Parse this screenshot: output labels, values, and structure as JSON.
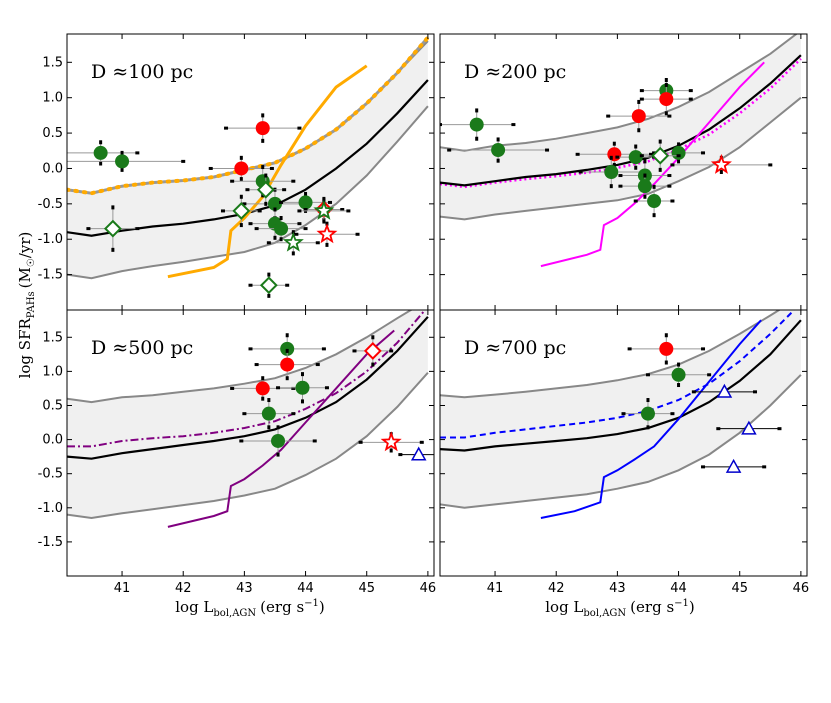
{
  "chart_data": {
    "type": "scatter",
    "title": "",
    "xlabel": "log L",
    "xlabel_sub": "bol,AGN",
    "xlabel_unit": "(erg s",
    "xlabel_exp": "−1",
    "xlabel_close": ")",
    "ylabel": "log SFR",
    "ylabel_sub": "PAHs",
    "ylabel_unit": "(M",
    "ylabel_unit_sub": "☉",
    "ylabel_unit_rest": "/yr)",
    "xlim": [
      40.1,
      46.1
    ],
    "ylim": [
      -2.0,
      1.9
    ],
    "xticks": [
      "41",
      "42",
      "43",
      "44",
      "45",
      "46"
    ],
    "yticks": [
      "1.5",
      "1.0",
      "0.5",
      "0.0",
      "-0.5",
      "-1.0",
      "-1.5"
    ],
    "ytick_values": [
      1.5,
      1.0,
      0.5,
      0.0,
      -0.5,
      -1.0,
      -1.5
    ],
    "xtick_values": [
      41,
      42,
      43,
      44,
      45,
      46
    ],
    "grid": false,
    "colors": {
      "band_fill": "#f0f0f0",
      "band_edge": "#888888",
      "median": "#000000",
      "green": "#1a7a1a",
      "red": "#ff0000",
      "blue": "#0000cc"
    },
    "panels": [
      {
        "label": "D ≈100 pc",
        "band_x": [
          40.1,
          40.5,
          41,
          41.5,
          42,
          42.5,
          43,
          43.5,
          44,
          44.5,
          45,
          45.5,
          46
        ],
        "band_upper": [
          -0.3,
          -0.35,
          -0.25,
          -0.2,
          -0.17,
          -0.12,
          -0.02,
          0.08,
          0.28,
          0.55,
          0.92,
          1.35,
          1.8
        ],
        "band_lower": [
          -1.5,
          -1.55,
          -1.45,
          -1.38,
          -1.32,
          -1.25,
          -1.18,
          -1.05,
          -0.8,
          -0.5,
          -0.1,
          0.38,
          0.88
        ],
        "median_y": [
          -0.9,
          -0.95,
          -0.88,
          -0.82,
          -0.78,
          -0.72,
          -0.64,
          -0.52,
          -0.3,
          0.0,
          0.35,
          0.78,
          1.25
        ],
        "model_color": "#ffaa00",
        "model_style": "dotted-orange",
        "model_y": [
          -0.3,
          -0.35,
          -0.25,
          -0.2,
          -0.17,
          -0.12,
          -0.02,
          0.08,
          0.28,
          0.55,
          0.92,
          1.35,
          1.85
        ],
        "track_color": "#ffaa00",
        "track": [
          [
            41.75,
            -1.53
          ],
          [
            42.5,
            -1.4
          ],
          [
            42.72,
            -1.28
          ],
          [
            42.78,
            -0.88
          ],
          [
            43.0,
            -0.7
          ],
          [
            43.3,
            -0.4
          ],
          [
            43.6,
            0.05
          ],
          [
            44.0,
            0.6
          ],
          [
            44.5,
            1.15
          ],
          [
            45.0,
            1.45
          ]
        ],
        "points": [
          {
            "x": 40.65,
            "y": 0.22,
            "m": "circle",
            "c": "green",
            "xe": 0.6,
            "ye": 0.15
          },
          {
            "x": 41.0,
            "y": 0.1,
            "m": "circle",
            "c": "green",
            "xe": 1.0,
            "ye": 0.12
          },
          {
            "x": 43.3,
            "y": 0.57,
            "m": "circle",
            "c": "red",
            "xe": 0.6,
            "ye": 0.18
          },
          {
            "x": 42.95,
            "y": 0.0,
            "m": "circle",
            "c": "red",
            "xe": 0.5,
            "ye": 0.15
          },
          {
            "x": 43.3,
            "y": -0.18,
            "m": "circle",
            "c": "green",
            "xe": 0.5,
            "ye": 0.2
          },
          {
            "x": 43.5,
            "y": -0.5,
            "m": "circle",
            "c": "green",
            "xe": 0.5,
            "ye": 0.2
          },
          {
            "x": 43.5,
            "y": -0.78,
            "m": "circle",
            "c": "green",
            "xe": 0.4,
            "ye": 0.2
          },
          {
            "x": 43.6,
            "y": -0.85,
            "m": "circle",
            "c": "green",
            "xe": 0.4,
            "ye": 0.15
          },
          {
            "x": 44.0,
            "y": -0.48,
            "m": "circle",
            "c": "green",
            "xe": 0.4,
            "ye": 0.12
          },
          {
            "x": 40.85,
            "y": -0.85,
            "m": "diamond",
            "c": "green",
            "xe": 0.4,
            "ye": 0.3
          },
          {
            "x": 42.95,
            "y": -0.6,
            "m": "diamond",
            "c": "green",
            "xe": 0.3,
            "ye": 0.2
          },
          {
            "x": 43.35,
            "y": -0.3,
            "m": "diamond",
            "c": "green",
            "xe": 0.3,
            "ye": 0.2
          },
          {
            "x": 43.4,
            "y": -1.65,
            "m": "diamond",
            "c": "green",
            "xe": 0.3,
            "ye": 0.15
          },
          {
            "x": 44.3,
            "y": -0.58,
            "m": "diamond",
            "c": "red",
            "xe": 0.3,
            "ye": 0.15
          },
          {
            "x": 43.8,
            "y": -1.05,
            "m": "star",
            "c": "green",
            "xe": 0.4,
            "ye": 0.15
          },
          {
            "x": 44.3,
            "y": -0.6,
            "m": "star",
            "c": "green",
            "xe": 0.4,
            "ye": 0.15
          },
          {
            "x": 44.35,
            "y": -0.93,
            "m": "star",
            "c": "red",
            "xe": 0.5,
            "ye": 0.15
          }
        ]
      },
      {
        "label": "D ≈200 pc",
        "band_x": [
          40.1,
          40.5,
          41,
          41.5,
          42,
          42.5,
          43,
          43.5,
          44,
          44.5,
          45,
          45.5,
          46
        ],
        "band_upper": [
          0.3,
          0.25,
          0.32,
          0.36,
          0.42,
          0.5,
          0.58,
          0.7,
          0.87,
          1.08,
          1.35,
          1.62,
          1.95
        ],
        "band_lower": [
          -0.68,
          -0.72,
          -0.65,
          -0.6,
          -0.55,
          -0.5,
          -0.45,
          -0.36,
          -0.18,
          0.02,
          0.3,
          0.65,
          1.0
        ],
        "median_y": [
          -0.2,
          -0.24,
          -0.18,
          -0.12,
          -0.08,
          -0.02,
          0.05,
          0.15,
          0.32,
          0.55,
          0.85,
          1.2,
          1.6
        ],
        "model_color": "#ff00ff",
        "model_style": "dotted-magenta",
        "model_y": [
          -0.22,
          -0.26,
          -0.2,
          -0.15,
          -0.11,
          -0.06,
          0.01,
          0.1,
          0.27,
          0.48,
          0.78,
          1.13,
          1.55
        ],
        "track_color": "#ff00ff",
        "track": [
          [
            41.75,
            -1.38
          ],
          [
            42.5,
            -1.22
          ],
          [
            42.72,
            -1.15
          ],
          [
            42.78,
            -0.8
          ],
          [
            43.0,
            -0.7
          ],
          [
            43.3,
            -0.48
          ],
          [
            43.6,
            -0.22
          ],
          [
            44.0,
            0.15
          ],
          [
            44.5,
            0.65
          ],
          [
            45.0,
            1.15
          ],
          [
            45.4,
            1.5
          ]
        ],
        "points": [
          {
            "x": 40.7,
            "y": 0.62,
            "m": "circle",
            "c": "green",
            "xe": 0.6,
            "ye": 0.2
          },
          {
            "x": 41.05,
            "y": 0.26,
            "m": "circle",
            "c": "green",
            "xe": 0.8,
            "ye": 0.15
          },
          {
            "x": 43.35,
            "y": 0.74,
            "m": "circle",
            "c": "red",
            "xe": 0.5,
            "ye": 0.2
          },
          {
            "x": 43.8,
            "y": 1.1,
            "m": "circle",
            "c": "green",
            "xe": 0.4,
            "ye": 0.15
          },
          {
            "x": 43.8,
            "y": 0.98,
            "m": "circle",
            "c": "red",
            "xe": 0.4,
            "ye": 0.2
          },
          {
            "x": 42.95,
            "y": 0.2,
            "m": "circle",
            "c": "red",
            "xe": 0.6,
            "ye": 0.15
          },
          {
            "x": 43.3,
            "y": 0.16,
            "m": "circle",
            "c": "green",
            "xe": 0.3,
            "ye": 0.15
          },
          {
            "x": 42.9,
            "y": -0.05,
            "m": "circle",
            "c": "green",
            "xe": 0.5,
            "ye": 0.2
          },
          {
            "x": 43.45,
            "y": -0.1,
            "m": "circle",
            "c": "green",
            "xe": 0.4,
            "ye": 0.2
          },
          {
            "x": 43.45,
            "y": -0.25,
            "m": "circle",
            "c": "green",
            "xe": 0.4,
            "ye": 0.15
          },
          {
            "x": 43.6,
            "y": -0.46,
            "m": "circle",
            "c": "green",
            "xe": 0.3,
            "ye": 0.2
          },
          {
            "x": 44.0,
            "y": 0.22,
            "m": "circle",
            "c": "green",
            "xe": 0.4,
            "ye": 0.12
          },
          {
            "x": 43.7,
            "y": 0.18,
            "m": "diamond",
            "c": "green",
            "xe": 0.3,
            "ye": 0.2
          },
          {
            "x": 44.7,
            "y": 0.05,
            "m": "star",
            "c": "red",
            "xe": 0.8,
            "ye": 0.1
          }
        ]
      },
      {
        "label": "D ≈500 pc",
        "band_x": [
          40.1,
          40.5,
          41,
          41.5,
          42,
          42.5,
          43,
          43.5,
          44,
          44.5,
          45,
          45.5,
          46
        ],
        "band_upper": [
          0.6,
          0.55,
          0.62,
          0.65,
          0.7,
          0.75,
          0.82,
          0.9,
          1.05,
          1.25,
          1.5,
          1.78,
          2.05
        ],
        "band_lower": [
          -1.1,
          -1.15,
          -1.08,
          -1.02,
          -0.96,
          -0.9,
          -0.82,
          -0.72,
          -0.52,
          -0.28,
          0.05,
          0.48,
          0.98
        ],
        "median_y": [
          -0.25,
          -0.28,
          -0.2,
          -0.14,
          -0.08,
          -0.02,
          0.05,
          0.15,
          0.32,
          0.55,
          0.88,
          1.3,
          1.8
        ],
        "model_color": "#800080",
        "model_style": "dashdot-purple",
        "model_y": [
          -0.1,
          -0.1,
          -0.02,
          0.02,
          0.05,
          0.1,
          0.17,
          0.27,
          0.45,
          0.68,
          1.0,
          1.42,
          1.95
        ],
        "track_color": "#800080",
        "track": [
          [
            41.75,
            -1.28
          ],
          [
            42.5,
            -1.12
          ],
          [
            42.72,
            -1.05
          ],
          [
            42.78,
            -0.68
          ],
          [
            43.0,
            -0.58
          ],
          [
            43.3,
            -0.38
          ],
          [
            43.6,
            -0.15
          ],
          [
            44.0,
            0.25
          ],
          [
            44.5,
            0.75
          ],
          [
            45.0,
            1.25
          ],
          [
            45.45,
            1.6
          ]
        ],
        "points": [
          {
            "x": 43.7,
            "y": 1.33,
            "m": "circle",
            "c": "green",
            "xe": 0.6,
            "ye": 0.2
          },
          {
            "x": 43.7,
            "y": 1.1,
            "m": "circle",
            "c": "red",
            "xe": 0.5,
            "ye": 0.2
          },
          {
            "x": 43.3,
            "y": 0.75,
            "m": "circle",
            "c": "red",
            "xe": 0.5,
            "ye": 0.15
          },
          {
            "x": 43.95,
            "y": 0.76,
            "m": "circle",
            "c": "green",
            "xe": 0.4,
            "ye": 0.2
          },
          {
            "x": 43.4,
            "y": 0.38,
            "m": "circle",
            "c": "green",
            "xe": 0.4,
            "ye": 0.2
          },
          {
            "x": 43.55,
            "y": -0.02,
            "m": "circle",
            "c": "green",
            "xe": 0.6,
            "ye": 0.2
          },
          {
            "x": 45.1,
            "y": 1.3,
            "m": "diamond",
            "c": "red",
            "xe": 0.3,
            "ye": 0.2
          },
          {
            "x": 45.4,
            "y": -0.04,
            "m": "star",
            "c": "red",
            "xe": 0.5,
            "ye": 0.12
          },
          {
            "x": 45.85,
            "y": -0.22,
            "m": "triangle",
            "c": "blue",
            "xe": 0.3,
            "ye": 0.0
          }
        ]
      },
      {
        "label": "D ≈700 pc",
        "band_x": [
          40.1,
          40.5,
          41,
          41.5,
          42,
          42.5,
          43,
          43.5,
          44,
          44.5,
          45,
          45.5,
          46
        ],
        "band_upper": [
          0.65,
          0.62,
          0.66,
          0.7,
          0.75,
          0.8,
          0.87,
          0.96,
          1.1,
          1.3,
          1.55,
          1.82,
          2.1
        ],
        "band_lower": [
          -0.95,
          -1.0,
          -0.95,
          -0.9,
          -0.85,
          -0.8,
          -0.72,
          -0.62,
          -0.45,
          -0.22,
          0.1,
          0.5,
          0.95
        ],
        "median_y": [
          -0.14,
          -0.16,
          -0.1,
          -0.06,
          -0.02,
          0.02,
          0.08,
          0.17,
          0.32,
          0.55,
          0.86,
          1.25,
          1.75
        ],
        "model_color": "#0000ff",
        "model_style": "dashed-blue",
        "model_y": [
          0.03,
          0.03,
          0.1,
          0.15,
          0.2,
          0.25,
          0.32,
          0.42,
          0.58,
          0.82,
          1.15,
          1.55,
          2.0
        ],
        "track_color": "#0000ff",
        "track": [
          [
            41.75,
            -1.15
          ],
          [
            42.3,
            -1.05
          ],
          [
            42.72,
            -0.92
          ],
          [
            42.78,
            -0.55
          ],
          [
            43.0,
            -0.45
          ],
          [
            43.3,
            -0.28
          ],
          [
            43.6,
            -0.1
          ],
          [
            44.0,
            0.3
          ],
          [
            44.5,
            0.85
          ],
          [
            45.0,
            1.4
          ],
          [
            45.35,
            1.75
          ]
        ],
        "points": [
          {
            "x": 43.8,
            "y": 1.33,
            "m": "circle",
            "c": "red",
            "xe": 0.6,
            "ye": 0.2
          },
          {
            "x": 44.0,
            "y": 0.95,
            "m": "circle",
            "c": "green",
            "xe": 0.5,
            "ye": 0.15
          },
          {
            "x": 43.5,
            "y": 0.38,
            "m": "circle",
            "c": "green",
            "xe": 0.4,
            "ye": 0.2
          },
          {
            "x": 44.75,
            "y": 0.7,
            "m": "triangle",
            "c": "blue",
            "xe": 0.5,
            "ye": 0.0
          },
          {
            "x": 45.15,
            "y": 0.16,
            "m": "triangle",
            "c": "blue",
            "xe": 0.5,
            "ye": 0.0
          },
          {
            "x": 44.9,
            "y": -0.4,
            "m": "triangle",
            "c": "blue",
            "xe": 0.5,
            "ye": 0.0
          }
        ]
      }
    ]
  }
}
